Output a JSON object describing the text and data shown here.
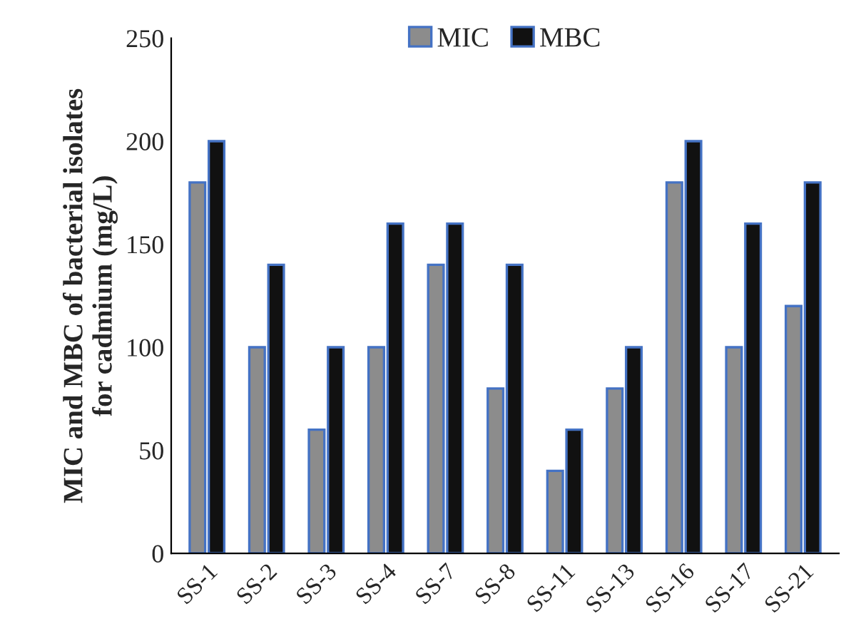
{
  "chart_data": {
    "type": "bar",
    "ylabel": "MIC and MBC of bacterial isolates\nfor cadmium (mg/L)",
    "categories": [
      "SS-1",
      "SS-2",
      "SS-3",
      "SS-4",
      "SS-7",
      "SS-8",
      "SS-11",
      "SS-13",
      "SS-16",
      "SS-17",
      "SS-21"
    ],
    "series": [
      {
        "name": "MIC",
        "color": "#8c8c8c",
        "values": [
          180,
          100,
          60,
          100,
          140,
          80,
          40,
          80,
          180,
          100,
          120
        ]
      },
      {
        "name": "MBC",
        "color": "#111111",
        "values": [
          200,
          140,
          100,
          160,
          160,
          140,
          60,
          100,
          200,
          160,
          180
        ]
      }
    ],
    "ylim": [
      0,
      250
    ],
    "yticks": [
      0,
      50,
      100,
      150,
      200,
      250
    ],
    "grid": false,
    "legend": "top"
  }
}
